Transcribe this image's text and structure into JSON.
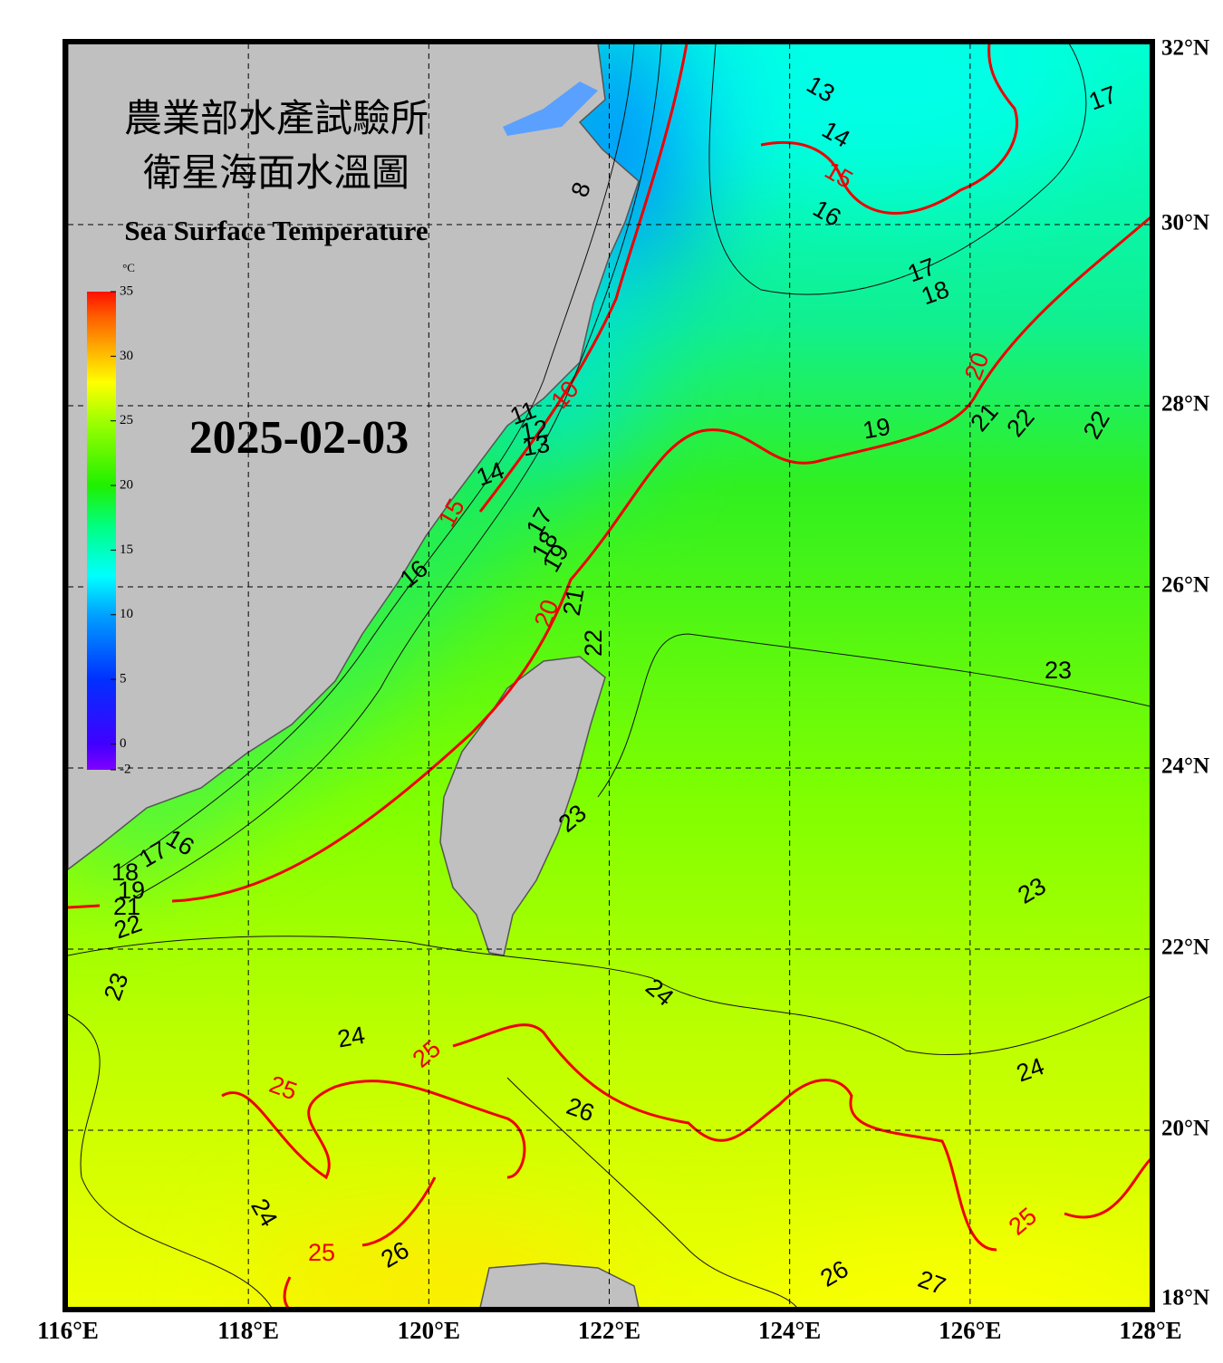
{
  "map": {
    "title_zh": [
      "農業部水產試驗所",
      "衛星海面水溫圖"
    ],
    "title_en": "Sea Surface Temperature",
    "date": "2025-02-03",
    "colorbar": {
      "unit": "°C",
      "lim": [
        -2,
        35
      ],
      "ticks": [
        35,
        30,
        25,
        20,
        15,
        10,
        5,
        0,
        -2
      ]
    },
    "lon_ticks": [
      {
        "value": 116,
        "label": "116°E"
      },
      {
        "value": 118,
        "label": "118°E"
      },
      {
        "value": 120,
        "label": "120°E"
      },
      {
        "value": 122,
        "label": "122°E"
      },
      {
        "value": 124,
        "label": "124°E"
      },
      {
        "value": 126,
        "label": "126°E"
      },
      {
        "value": 128,
        "label": "128°E"
      }
    ],
    "lat_ticks": [
      {
        "value": 32,
        "label": "32°N"
      },
      {
        "value": 30,
        "label": "30°N"
      },
      {
        "value": 28,
        "label": "28°N"
      },
      {
        "value": 26,
        "label": "26°N"
      },
      {
        "value": 24,
        "label": "24°N"
      },
      {
        "value": 22,
        "label": "22°N"
      },
      {
        "value": 20,
        "label": "20°N"
      },
      {
        "value": 18,
        "label": "18°N"
      }
    ],
    "xlim": [
      116,
      128
    ],
    "ylim": [
      18,
      32
    ],
    "contour_labels": [
      13,
      14,
      15,
      16,
      17,
      17,
      18,
      20,
      19,
      21,
      22,
      22,
      8,
      10,
      11,
      12,
      13,
      14,
      15,
      16,
      17,
      18,
      19,
      20,
      21,
      22,
      23,
      23,
      23,
      16,
      17,
      18,
      19,
      21,
      22,
      23,
      24,
      25,
      25,
      24,
      26,
      24,
      24,
      25,
      26,
      25,
      26,
      27
    ]
  }
}
